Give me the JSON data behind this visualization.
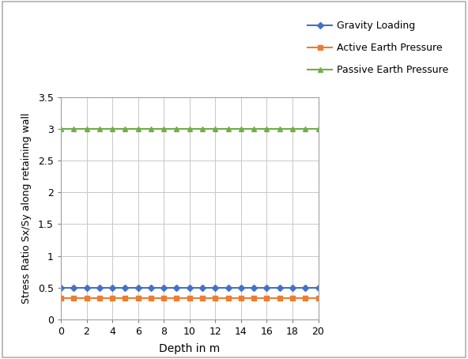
{
  "title": "",
  "xlabel": "Depth in m",
  "ylabel": "Stress Ratio Sx/Sy along retaining wall",
  "x_values": [
    0,
    1,
    2,
    3,
    4,
    5,
    6,
    7,
    8,
    9,
    10,
    11,
    12,
    13,
    14,
    15,
    16,
    17,
    18,
    19,
    20
  ],
  "gravity_value": 0.5,
  "active_value": 0.333,
  "passive_value": 3.0,
  "gravity_color": "#4472C4",
  "active_color": "#ED7D31",
  "passive_color": "#70AD47",
  "xlim": [
    0,
    20
  ],
  "ylim": [
    0,
    3.5
  ],
  "yticks": [
    0,
    0.5,
    1.0,
    1.5,
    2.0,
    2.5,
    3.0,
    3.5
  ],
  "xticks": [
    0,
    2,
    4,
    6,
    8,
    10,
    12,
    14,
    16,
    18,
    20
  ],
  "legend_labels": [
    "Gravity Loading",
    "Active Earth Pressure",
    "Passive Earth Pressure"
  ],
  "background_color": "#ffffff",
  "grid_color": "#C8C8C8",
  "outer_border_color": "#AAAAAA",
  "figure_bg": "#ffffff"
}
